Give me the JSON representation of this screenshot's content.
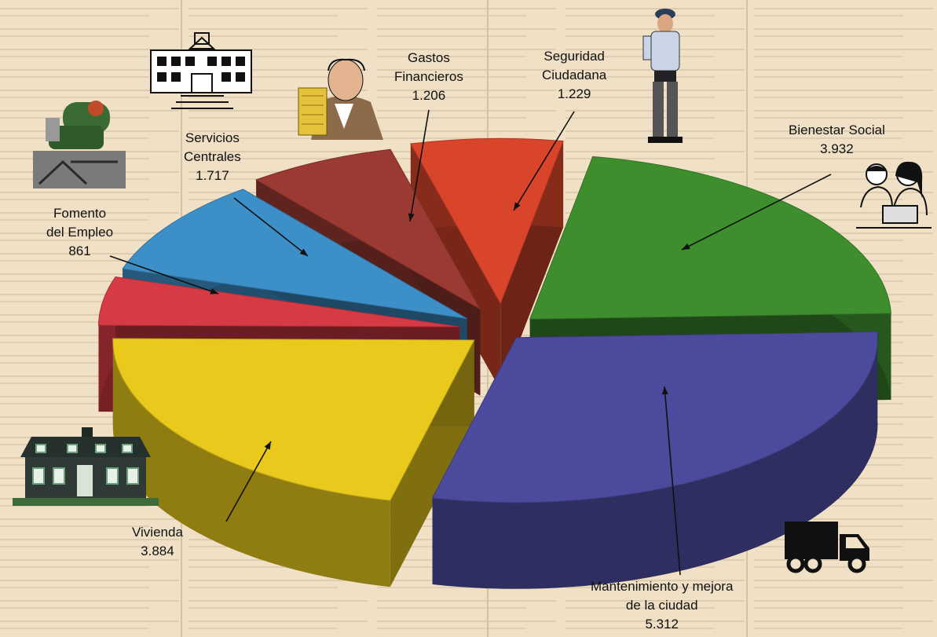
{
  "chart_data": {
    "type": "pie",
    "style": "3d-exploded",
    "title": "",
    "slices": [
      {
        "name": "Bienestar Social",
        "lines": [
          "Bienestar Social"
        ],
        "value": 3932,
        "value_label": "3.932",
        "color": "#3e8e2e",
        "icon": "family-reading-icon"
      },
      {
        "name": "Mantenimiento y mejora de la ciudad",
        "lines": [
          "Mantenimiento y mejora",
          "de la ciudad"
        ],
        "value": 5312,
        "value_label": "5.312",
        "color": "#4b4a9c",
        "icon": "delivery-truck-icon"
      },
      {
        "name": "Vivienda",
        "lines": [
          "Vivienda"
        ],
        "value": 3884,
        "value_label": "3.884",
        "color": "#e8c91c",
        "icon": "house-icon"
      },
      {
        "name": "Fomento del Empleo",
        "lines": [
          "Fomento",
          "del Empleo"
        ],
        "value": 861,
        "value_label": "861",
        "color": "#d63a45",
        "icon": "worker-icon"
      },
      {
        "name": "Servicios Centrales",
        "lines": [
          "Servicios",
          "Centrales"
        ],
        "value": 1717,
        "value_label": "1.717",
        "color": "#3d8fc7",
        "icon": "city-hall-icon"
      },
      {
        "name": "Gastos Financieros",
        "lines": [
          "Gastos",
          "Financieros"
        ],
        "value": 1206,
        "value_label": "1.206",
        "color": "#9a3a32",
        "icon": "banker-money-icon"
      },
      {
        "name": "Seguridad Ciudadana",
        "lines": [
          "Seguridad",
          "Ciudadana"
        ],
        "value": 1229,
        "value_label": "1.229",
        "color": "#d9452b",
        "icon": "police-officer-icon"
      }
    ]
  }
}
